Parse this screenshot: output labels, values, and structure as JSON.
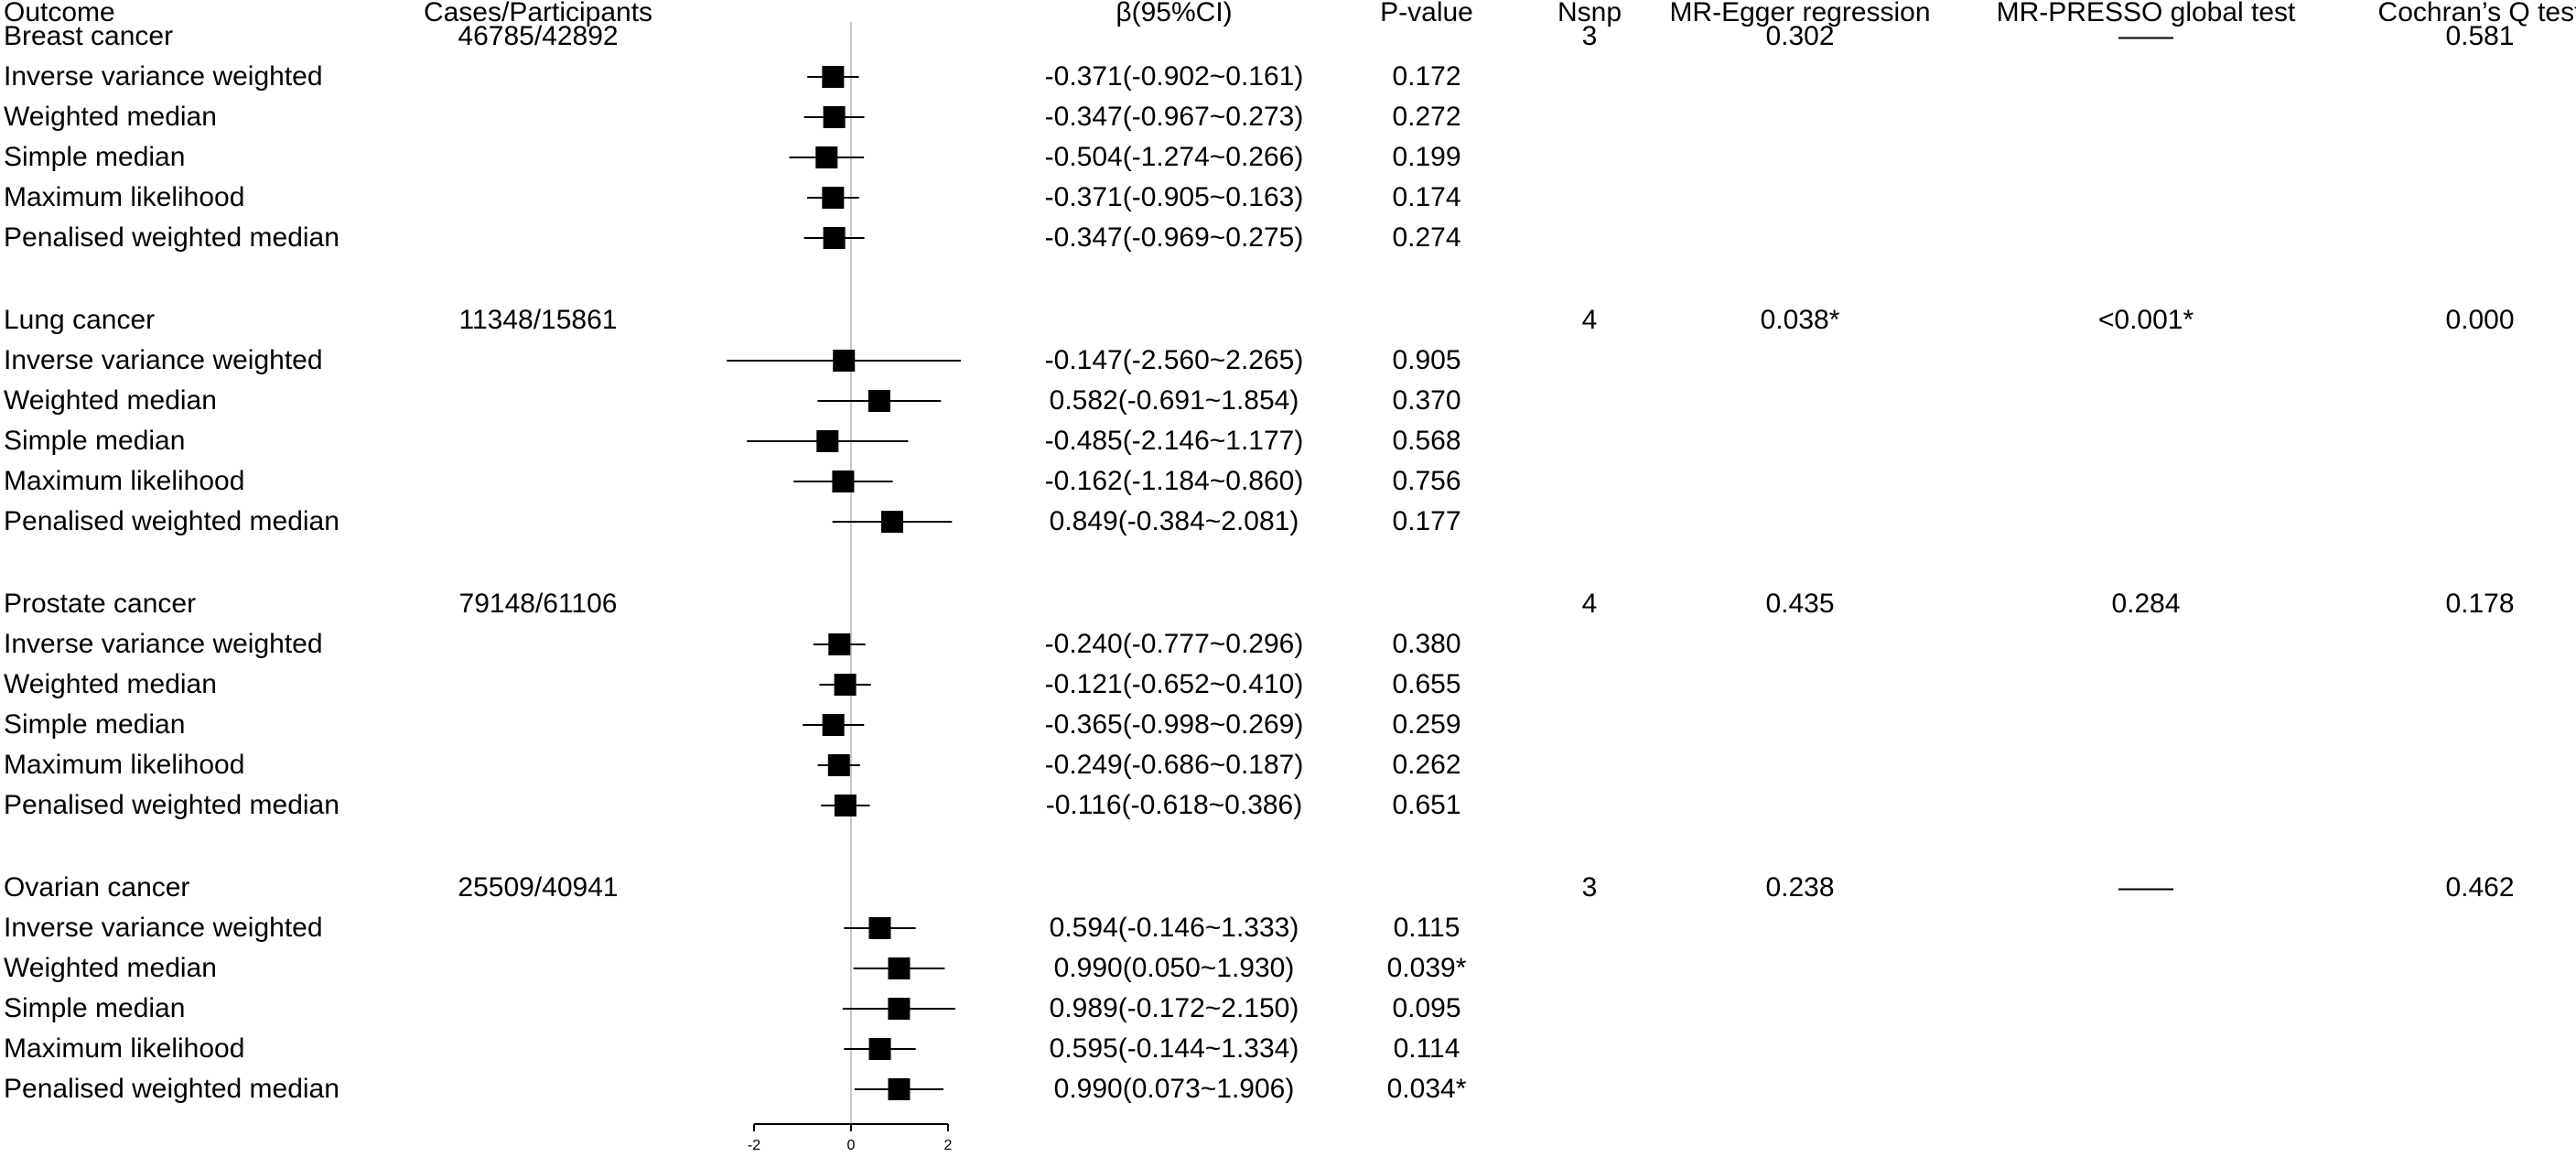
{
  "headers": {
    "outcome": "Outcome",
    "cases": "Cases/Participants",
    "beta_ci": "β(95%CI)",
    "pvalue": "P-value",
    "nsnp": "Nsnp",
    "egger": "MR-Egger regression",
    "presso": "MR-PRESSO global test",
    "cochran": "Cochran’s Q test"
  },
  "groups": [
    {
      "outcome": "Breast cancer",
      "cases": "46785/42892",
      "nsnp": "3",
      "egger": "0.302",
      "presso": "——",
      "cochran": "0.581",
      "methods": [
        {
          "name": "Inverse variance weighted",
          "ci_text": "-0.371(-0.902~0.161)",
          "p": "0.172"
        },
        {
          "name": "Weighted median",
          "ci_text": "-0.347(-0.967~0.273)",
          "p": "0.272"
        },
        {
          "name": "Simple median",
          "ci_text": "-0.504(-1.274~0.266)",
          "p": "0.199"
        },
        {
          "name": "Maximum likelihood",
          "ci_text": "-0.371(-0.905~0.163)",
          "p": "0.174"
        },
        {
          "name": "Penalised weighted median",
          "ci_text": "-0.347(-0.969~0.275)",
          "p": "0.274"
        }
      ]
    },
    {
      "outcome": "Lung cancer",
      "cases": "11348/15861",
      "nsnp": "4",
      "egger": "0.038*",
      "presso": "<0.001*",
      "cochran": "0.000",
      "methods": [
        {
          "name": "Inverse variance weighted",
          "ci_text": "-0.147(-2.560~2.265)",
          "p": "0.905"
        },
        {
          "name": "Weighted median",
          "ci_text": "0.582(-0.691~1.854)",
          "p": "0.370"
        },
        {
          "name": "Simple median",
          "ci_text": "-0.485(-2.146~1.177)",
          "p": "0.568"
        },
        {
          "name": "Maximum likelihood",
          "ci_text": "-0.162(-1.184~0.860)",
          "p": "0.756"
        },
        {
          "name": "Penalised weighted median",
          "ci_text": "0.849(-0.384~2.081)",
          "p": "0.177"
        }
      ]
    },
    {
      "outcome": "Prostate cancer",
      "cases": "79148/61106",
      "nsnp": "4",
      "egger": "0.435",
      "presso": "0.284",
      "cochran": "0.178",
      "methods": [
        {
          "name": "Inverse variance weighted",
          "ci_text": "-0.240(-0.777~0.296)",
          "p": "0.380"
        },
        {
          "name": "Weighted median",
          "ci_text": "-0.121(-0.652~0.410)",
          "p": "0.655"
        },
        {
          "name": "Simple median",
          "ci_text": "-0.365(-0.998~0.269)",
          "p": "0.259"
        },
        {
          "name": "Maximum likelihood",
          "ci_text": "-0.249(-0.686~0.187)",
          "p": "0.262"
        },
        {
          "name": "Penalised weighted median",
          "ci_text": "-0.116(-0.618~0.386)",
          "p": "0.651"
        }
      ]
    },
    {
      "outcome": "Ovarian cancer",
      "cases": "25509/40941",
      "nsnp": "3",
      "egger": "0.238",
      "presso": "——",
      "cochran": "0.462",
      "methods": [
        {
          "name": "Inverse variance weighted",
          "ci_text": "0.594(-0.146~1.333)",
          "p": "0.115"
        },
        {
          "name": "Weighted median",
          "ci_text": "0.990(0.050~1.930)",
          "p": "0.039*"
        },
        {
          "name": "Simple median",
          "ci_text": "0.989(-0.172~2.150)",
          "p": "0.095"
        },
        {
          "name": "Maximum likelihood",
          "ci_text": "0.595(-0.144~1.334)",
          "p": "0.114"
        },
        {
          "name": "Penalised weighted median",
          "ci_text": "0.990(0.073~1.906)",
          "p": "0.034*"
        }
      ]
    }
  ],
  "chart_data": {
    "type": "scatter",
    "title": "",
    "xlabel": "",
    "ylabel": "",
    "xlim": [
      -2,
      2
    ],
    "xticks": [
      "-2",
      "0",
      "2"
    ],
    "reference_line": 0,
    "categories": [
      "Breast cancer: Inverse variance weighted",
      "Breast cancer: Weighted median",
      "Breast cancer: Simple median",
      "Breast cancer: Maximum likelihood",
      "Breast cancer: Penalised weighted median",
      "Lung cancer: Inverse variance weighted",
      "Lung cancer: Weighted median",
      "Lung cancer: Simple median",
      "Lung cancer: Maximum likelihood",
      "Lung cancer: Penalised weighted median",
      "Prostate cancer: Inverse variance weighted",
      "Prostate cancer: Weighted median",
      "Prostate cancer: Simple median",
      "Prostate cancer: Maximum likelihood",
      "Prostate cancer: Penalised weighted median",
      "Ovarian cancer: Inverse variance weighted",
      "Ovarian cancer: Weighted median",
      "Ovarian cancer: Simple median",
      "Ovarian cancer: Maximum likelihood",
      "Ovarian cancer: Penalised weighted median"
    ],
    "estimates": [
      -0.371,
      -0.347,
      -0.504,
      -0.371,
      -0.347,
      -0.147,
      0.582,
      -0.485,
      -0.162,
      0.849,
      -0.24,
      -0.121,
      -0.365,
      -0.249,
      -0.116,
      0.594,
      0.99,
      0.989,
      0.595,
      0.99
    ],
    "lower": [
      -0.902,
      -0.967,
      -1.274,
      -0.905,
      -0.969,
      -2.56,
      -0.691,
      -2.146,
      -1.184,
      -0.384,
      -0.777,
      -0.652,
      -0.998,
      -0.686,
      -0.618,
      -0.146,
      0.05,
      -0.172,
      -0.144,
      0.073
    ],
    "upper": [
      0.161,
      0.273,
      0.266,
      0.163,
      0.275,
      2.265,
      1.854,
      1.177,
      0.86,
      2.081,
      0.296,
      0.41,
      0.269,
      0.187,
      0.386,
      1.333,
      1.93,
      2.15,
      1.334,
      1.906
    ],
    "grid": false,
    "legend": "none"
  }
}
